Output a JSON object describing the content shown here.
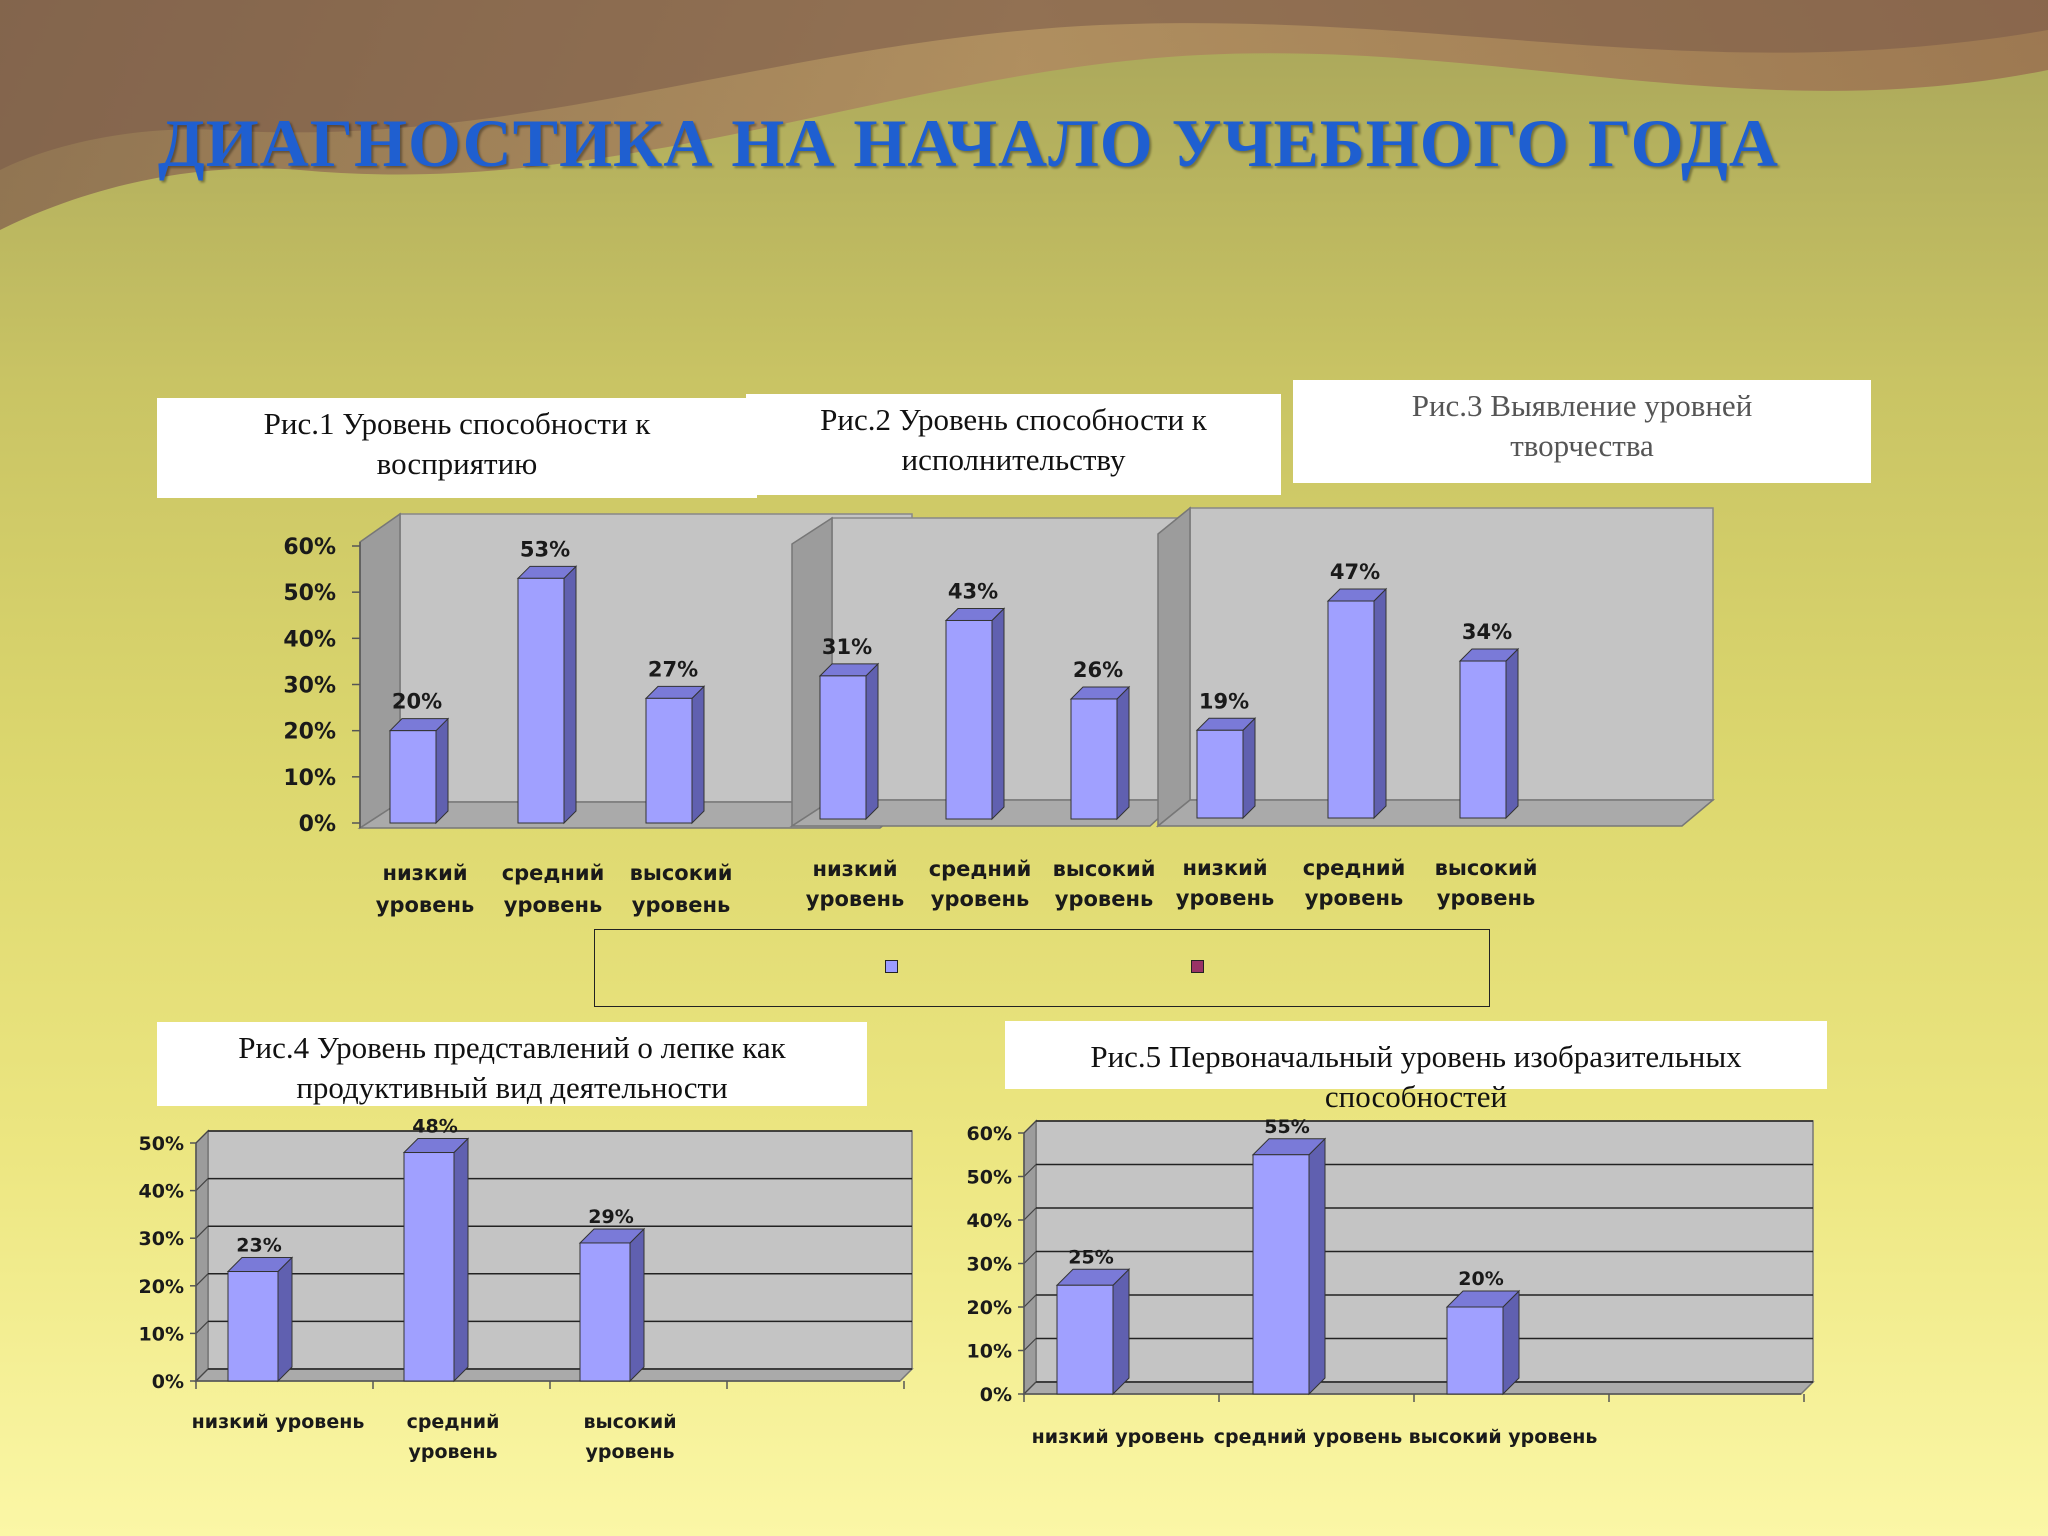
{
  "title": "ДИАГНОСТИКА НА  НАЧАЛО УЧЕБНОГО ГОДА",
  "captions": [
    "Рис.1 Уровень  способности к восприятию",
    "Рис.2 Уровень способности к исполнительству",
    "Рис.3 Выявление уровней творчества",
    "Рис.4  Уровень представлений о лепке как продуктивный вид деятельности",
    "Рис.5 Первоначальный уровень изобразительных способностей"
  ],
  "legend": {
    "swatch_colors": [
      "#9c9cff",
      "#993366"
    ]
  },
  "colors": {
    "bar_front": "#a0a0ff",
    "bar_side": "#6060b0",
    "bar_top": "#7a7ad8",
    "plot_back": "#c4c4c4",
    "title": "#1f5fd0"
  },
  "chart_data": [
    {
      "type": "bar",
      "title": "Рис.1 Уровень  способности к восприятию",
      "categories": [
        "низкий уровень",
        "средний уровень",
        "высокий уровень"
      ],
      "values": [
        20,
        53,
        27
      ],
      "data_labels": [
        "20%",
        "53%",
        "27%"
      ],
      "yticks": [
        "0%",
        "10%",
        "20%",
        "30%",
        "40%",
        "50%",
        "60%"
      ],
      "ylim": [
        0,
        60
      ],
      "grid": false
    },
    {
      "type": "bar",
      "title": "Рис.2 Уровень способности к исполнительству",
      "categories": [
        "низкий уровень",
        "средний уровень",
        "высокий уровень"
      ],
      "values": [
        31,
        43,
        26
      ],
      "data_labels": [
        "31%",
        "43%",
        "26%"
      ],
      "ylim": [
        0,
        60
      ],
      "grid": false
    },
    {
      "type": "bar",
      "title": "Рис.3 Выявление уровней творчества",
      "categories": [
        "низкий уровень",
        "средний уровень",
        "высокий уровень"
      ],
      "values": [
        19,
        47,
        34
      ],
      "data_labels": [
        "19%",
        "47%",
        "34%"
      ],
      "ylim": [
        0,
        60
      ],
      "grid": false
    },
    {
      "type": "bar",
      "title": "Рис.4  Уровень представлений о лепке как продуктивный вид деятельности",
      "categories": [
        "низкий уровень",
        "средний уровень",
        "высокий уровень"
      ],
      "values": [
        23,
        48,
        29
      ],
      "data_labels": [
        "23%",
        "48%",
        "29%"
      ],
      "yticks": [
        "0%",
        "10%",
        "20%",
        "30%",
        "40%",
        "50%"
      ],
      "ylim": [
        0,
        50
      ],
      "grid": true
    },
    {
      "type": "bar",
      "title": "Рис.5 Первоначальный уровень изобразительных способностей",
      "categories": [
        "низкий уровень",
        "средний уровень",
        "высокий уровень"
      ],
      "values": [
        25,
        55,
        20
      ],
      "data_labels": [
        "25%",
        "55%",
        "20%"
      ],
      "yticks": [
        "0%",
        "10%",
        "20%",
        "30%",
        "40%",
        "50%",
        "60%"
      ],
      "ylim": [
        0,
        60
      ],
      "grid": true
    }
  ]
}
